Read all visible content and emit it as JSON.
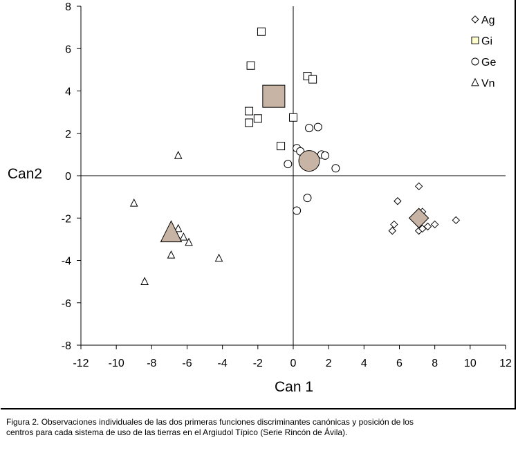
{
  "chart_data": {
    "type": "scatter",
    "xlabel": "Can 1",
    "ylabel": "Can2",
    "xlim": [
      -12,
      12
    ],
    "ylim": [
      -8,
      8
    ],
    "x_ticks": [
      -12,
      -10,
      -8,
      -6,
      -4,
      -2,
      0,
      2,
      4,
      6,
      8,
      10,
      12
    ],
    "y_ticks": [
      -8,
      -6,
      -4,
      -2,
      0,
      2,
      4,
      6,
      8
    ],
    "grid": false,
    "legend_position": "top-right",
    "series": [
      {
        "name": "Ag",
        "marker": "diamond",
        "points": [
          [
            7.1,
            -0.5
          ],
          [
            5.9,
            -1.2
          ],
          [
            7.3,
            -1.7
          ],
          [
            5.7,
            -2.3
          ],
          [
            5.6,
            -2.6
          ],
          [
            7.1,
            -2.6
          ],
          [
            7.3,
            -2.5
          ],
          [
            7.6,
            -2.4
          ],
          [
            8.0,
            -2.3
          ],
          [
            9.2,
            -2.1
          ]
        ],
        "centroid": [
          7.1,
          -2.0
        ]
      },
      {
        "name": "Gi",
        "marker": "square",
        "points": [
          [
            -1.8,
            6.8
          ],
          [
            -2.4,
            5.2
          ],
          [
            0.8,
            4.7
          ],
          [
            1.1,
            4.55
          ],
          [
            -2.5,
            3.05
          ],
          [
            -2.0,
            2.7
          ],
          [
            -2.5,
            2.5
          ],
          [
            0.0,
            2.75
          ],
          [
            -0.7,
            1.4
          ]
        ],
        "centroid": [
          -1.1,
          3.75
        ]
      },
      {
        "name": "Ge",
        "marker": "circle",
        "points": [
          [
            1.4,
            2.3
          ],
          [
            0.9,
            2.25
          ],
          [
            0.2,
            1.3
          ],
          [
            0.4,
            1.15
          ],
          [
            1.6,
            1.0
          ],
          [
            1.8,
            0.95
          ],
          [
            -0.3,
            0.55
          ],
          [
            2.4,
            0.35
          ],
          [
            0.8,
            -1.05
          ],
          [
            0.2,
            -1.65
          ]
        ],
        "centroid": [
          0.9,
          0.7
        ]
      },
      {
        "name": "Vn",
        "marker": "triangle",
        "points": [
          [
            -6.5,
            0.95
          ],
          [
            -9.0,
            -1.3
          ],
          [
            -6.5,
            -2.5
          ],
          [
            -6.2,
            -2.9
          ],
          [
            -5.9,
            -3.15
          ],
          [
            -6.9,
            -3.75
          ],
          [
            -4.2,
            -3.9
          ],
          [
            -8.4,
            -5.0
          ]
        ],
        "centroid": [
          -6.9,
          -2.7
        ]
      }
    ]
  },
  "caption": {
    "line1": "Figura 2. Observaciones individuales de las dos primeras funciones discriminantes canónicas y posición de los",
    "line2": "centros para cada sistema de uso de las tierras en el Argiudol Típico (Serie Rincón de Ávila)."
  },
  "colors": {
    "centroid_fill": "#c8b4a5",
    "legend_gi_fill": "#ffffcc",
    "marker_fill": "#ffffff",
    "stroke": "#000000"
  }
}
